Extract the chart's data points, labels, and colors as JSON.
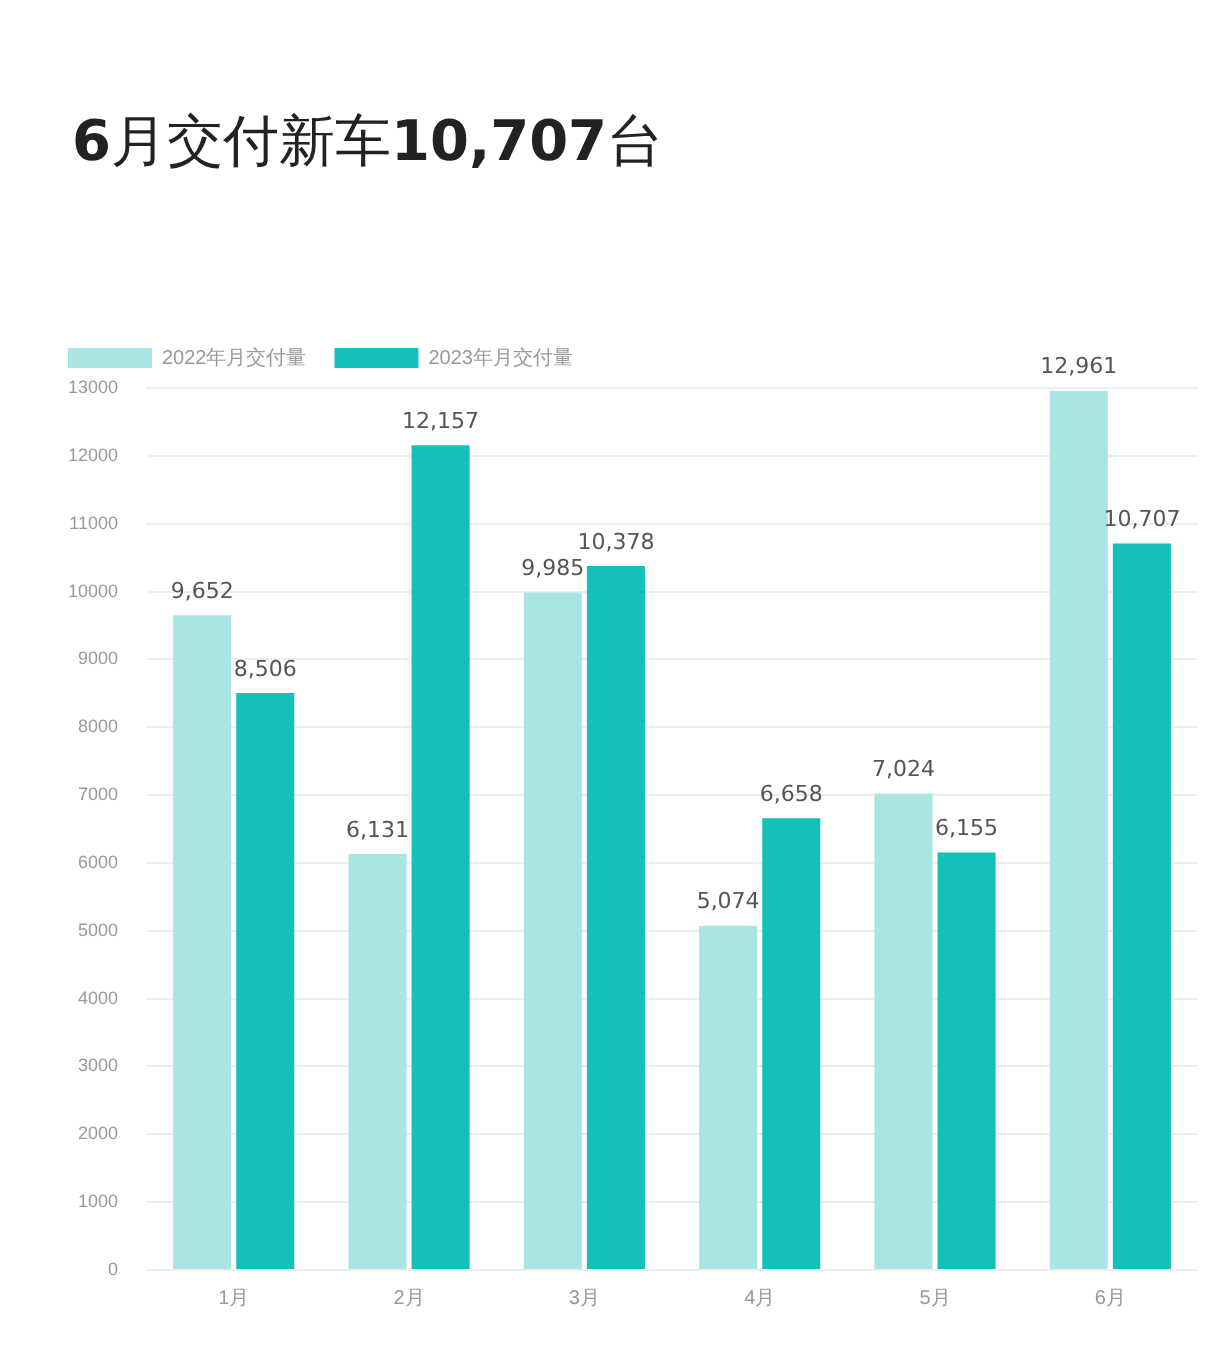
{
  "chart_data": {
    "type": "bar",
    "title": "6月交付新车10,707台",
    "categories": [
      "1月",
      "2月",
      "3月",
      "4月",
      "5月",
      "6月"
    ],
    "series": [
      {
        "name": "2022年月交付量",
        "color": "#a9e5e3",
        "values": [
          9652,
          6131,
          9985,
          5074,
          7024,
          12961
        ],
        "value_labels": [
          "9,652",
          "6,131",
          "9,985",
          "5,074",
          "7,024",
          "12,961"
        ]
      },
      {
        "name": "2023年月交付量",
        "color": "#13c1b9",
        "values": [
          8506,
          12157,
          10378,
          6658,
          6155,
          10707
        ],
        "value_labels": [
          "8,506",
          "12,157",
          "10,378",
          "6,658",
          "6,155",
          "10,707"
        ]
      }
    ],
    "ylim": [
      0,
      13000
    ],
    "yticks": [
      0,
      1000,
      2000,
      3000,
      4000,
      5000,
      6000,
      7000,
      8000,
      9000,
      10000,
      11000,
      12000,
      13000
    ],
    "grid": "y",
    "legend": "top left"
  }
}
